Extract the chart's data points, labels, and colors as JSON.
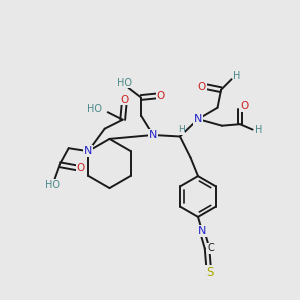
{
  "bg_color": "#e8e8e8",
  "C_color": "#1a1a1a",
  "N_color": "#2222cc",
  "O_color": "#cc2222",
  "S_color": "#aaaa00",
  "H_color": "#4a8888",
  "bond_color": "#1a1a1a",
  "bond_lw": 1.4,
  "figsize": [
    3.0,
    3.0
  ],
  "dpi": 100,
  "xlim": [
    0,
    10
  ],
  "ylim": [
    0,
    10
  ]
}
